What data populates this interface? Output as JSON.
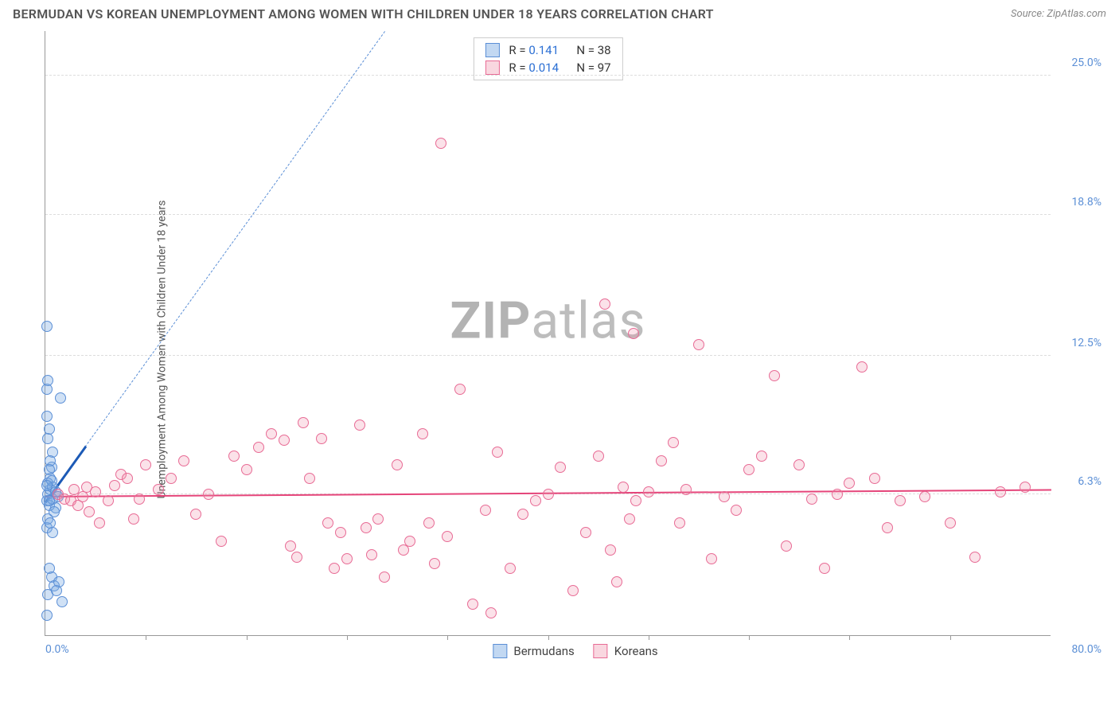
{
  "header": {
    "title": "BERMUDAN VS KOREAN UNEMPLOYMENT AMONG WOMEN WITH CHILDREN UNDER 18 YEARS CORRELATION CHART",
    "source": "Source: ZipAtlas.com"
  },
  "chart": {
    "type": "scatter",
    "background_color": "#ffffff",
    "grid_color": "#dddddd",
    "axis_color": "#999999",
    "y_axis_label": "Unemployment Among Women with Children Under 18 years",
    "x_axis_label_left": "0.0%",
    "x_axis_label_right": "80.0%",
    "xlim": [
      0,
      80
    ],
    "ylim": [
      0,
      27
    ],
    "y_ticks": [
      {
        "value": 6.3,
        "label": "6.3%"
      },
      {
        "value": 12.5,
        "label": "12.5%"
      },
      {
        "value": 18.8,
        "label": "18.8%"
      },
      {
        "value": 25.0,
        "label": "25.0%"
      }
    ],
    "x_tick_positions": [
      8,
      16,
      24,
      32,
      40,
      48,
      56,
      64,
      72
    ],
    "watermark": {
      "bold": "ZIP",
      "rest": "atlas"
    },
    "series": {
      "bermudans": {
        "label": "Bermudans",
        "fill_color": "#78a8e2",
        "stroke_color": "#5b8fd6",
        "r_value": "0.141",
        "n_value": "38",
        "trend_solid": {
          "x1": 0,
          "y1": 6.0,
          "x2": 3.2,
          "y2": 8.5,
          "color": "#1c5ab6"
        },
        "trend_dashed": {
          "x1": 0,
          "y1": 6.0,
          "x2": 27,
          "y2": 27.0,
          "color": "#5b8fd6"
        },
        "points": [
          [
            0.1,
            13.8
          ],
          [
            0.1,
            6.0
          ],
          [
            0.2,
            6.3
          ],
          [
            0.3,
            5.8
          ],
          [
            0.4,
            7.0
          ],
          [
            0.5,
            7.5
          ],
          [
            0.6,
            8.2
          ],
          [
            0.2,
            8.8
          ],
          [
            0.3,
            9.2
          ],
          [
            0.1,
            11.0
          ],
          [
            0.2,
            11.4
          ],
          [
            1.2,
            10.6
          ],
          [
            0.4,
            6.5
          ],
          [
            0.6,
            6.1
          ],
          [
            0.8,
            5.7
          ],
          [
            0.1,
            4.8
          ],
          [
            0.3,
            3.0
          ],
          [
            0.5,
            2.6
          ],
          [
            0.7,
            2.2
          ],
          [
            0.2,
            1.8
          ],
          [
            0.9,
            2.0
          ],
          [
            1.1,
            2.4
          ],
          [
            1.3,
            1.5
          ],
          [
            0.1,
            0.9
          ],
          [
            0.4,
            7.8
          ],
          [
            0.2,
            6.8
          ],
          [
            0.6,
            6.6
          ],
          [
            0.8,
            6.4
          ],
          [
            1.0,
            6.2
          ],
          [
            0.3,
            6.0
          ],
          [
            0.5,
            6.9
          ],
          [
            0.7,
            5.5
          ],
          [
            0.1,
            9.8
          ],
          [
            0.2,
            5.2
          ],
          [
            0.4,
            5.0
          ],
          [
            0.6,
            4.6
          ],
          [
            0.3,
            7.4
          ],
          [
            0.1,
            6.7
          ]
        ]
      },
      "koreans": {
        "label": "Koreans",
        "fill_color": "#ef8ca7",
        "stroke_color": "#e86b95",
        "r_value": "0.014",
        "n_value": "97",
        "trend_solid": {
          "x1": 0,
          "y1": 6.25,
          "x2": 80,
          "y2": 6.55,
          "color": "#e5457a"
        },
        "points": [
          [
            1,
            6.3
          ],
          [
            1.5,
            6.1
          ],
          [
            2,
            6.0
          ],
          [
            2.3,
            6.5
          ],
          [
            2.6,
            5.8
          ],
          [
            3,
            6.2
          ],
          [
            3.3,
            6.6
          ],
          [
            3.5,
            5.5
          ],
          [
            4,
            6.4
          ],
          [
            4.3,
            5.0
          ],
          [
            5,
            6.0
          ],
          [
            5.5,
            6.7
          ],
          [
            6,
            7.2
          ],
          [
            6.5,
            7.0
          ],
          [
            7,
            5.2
          ],
          [
            7.5,
            6.1
          ],
          [
            8,
            7.6
          ],
          [
            9,
            6.5
          ],
          [
            10,
            7.0
          ],
          [
            11,
            7.8
          ],
          [
            12,
            5.4
          ],
          [
            13,
            6.3
          ],
          [
            14,
            4.2
          ],
          [
            15,
            8.0
          ],
          [
            16,
            7.4
          ],
          [
            17,
            8.4
          ],
          [
            18,
            9.0
          ],
          [
            19,
            8.7
          ],
          [
            19.5,
            4.0
          ],
          [
            20,
            3.5
          ],
          [
            20.5,
            9.5
          ],
          [
            21,
            7.0
          ],
          [
            22,
            8.8
          ],
          [
            22.5,
            5.0
          ],
          [
            23,
            3.0
          ],
          [
            23.5,
            4.6
          ],
          [
            24,
            3.4
          ],
          [
            25,
            9.4
          ],
          [
            25.5,
            4.8
          ],
          [
            26,
            3.6
          ],
          [
            26.5,
            5.2
          ],
          [
            27,
            2.6
          ],
          [
            28,
            7.6
          ],
          [
            28.5,
            3.8
          ],
          [
            29,
            4.2
          ],
          [
            30,
            9.0
          ],
          [
            30.5,
            5.0
          ],
          [
            31,
            3.2
          ],
          [
            31.5,
            22.0
          ],
          [
            32,
            4.4
          ],
          [
            33,
            11.0
          ],
          [
            34,
            1.4
          ],
          [
            35,
            5.6
          ],
          [
            35.5,
            1.0
          ],
          [
            36,
            8.2
          ],
          [
            37,
            3.0
          ],
          [
            38,
            5.4
          ],
          [
            39,
            6.0
          ],
          [
            40,
            6.3
          ],
          [
            41,
            7.5
          ],
          [
            42,
            2.0
          ],
          [
            43,
            4.6
          ],
          [
            44,
            8.0
          ],
          [
            44.5,
            14.8
          ],
          [
            45,
            3.8
          ],
          [
            45.5,
            2.4
          ],
          [
            46,
            6.6
          ],
          [
            46.5,
            5.2
          ],
          [
            46.8,
            13.5
          ],
          [
            47,
            6.0
          ],
          [
            48,
            6.4
          ],
          [
            49,
            7.8
          ],
          [
            50,
            8.6
          ],
          [
            50.5,
            5.0
          ],
          [
            51,
            6.5
          ],
          [
            52,
            13.0
          ],
          [
            53,
            3.4
          ],
          [
            54,
            6.2
          ],
          [
            55,
            5.6
          ],
          [
            56,
            7.4
          ],
          [
            57,
            8.0
          ],
          [
            58,
            11.6
          ],
          [
            59,
            4.0
          ],
          [
            60,
            7.6
          ],
          [
            61,
            6.1
          ],
          [
            62,
            3.0
          ],
          [
            63,
            6.3
          ],
          [
            64,
            6.8
          ],
          [
            65,
            12.0
          ],
          [
            66,
            7.0
          ],
          [
            67,
            4.8
          ],
          [
            68,
            6.0
          ],
          [
            70,
            6.2
          ],
          [
            72,
            5.0
          ],
          [
            74,
            3.5
          ],
          [
            76,
            6.4
          ],
          [
            78,
            6.6
          ]
        ]
      }
    }
  },
  "legend_bottom": {
    "items": [
      {
        "key": "bermudans",
        "label": "Bermudans"
      },
      {
        "key": "koreans",
        "label": "Koreans"
      }
    ]
  }
}
